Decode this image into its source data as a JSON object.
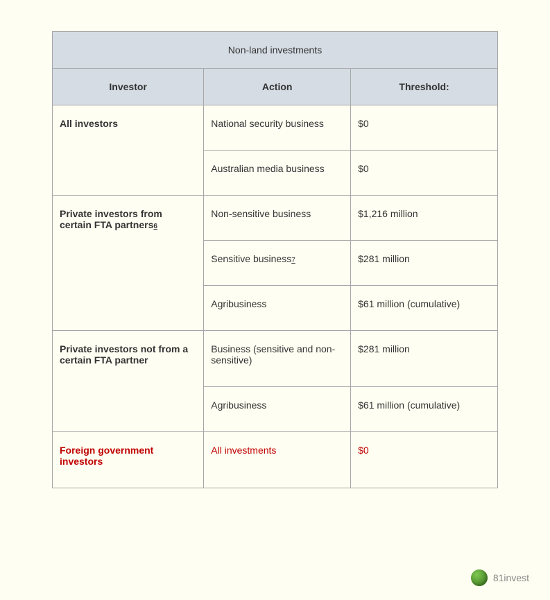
{
  "table": {
    "title": "Non-land investments",
    "columns": [
      "Investor",
      "Action",
      "Threshold:"
    ],
    "rows": [
      {
        "investor": "All investors",
        "investor_footnote": "",
        "actions": [
          {
            "action": "National security business",
            "action_footnote": "",
            "threshold": "$0"
          },
          {
            "action": "Australian media business",
            "action_footnote": "",
            "threshold": "$0"
          }
        ]
      },
      {
        "investor": "Private investors from certain FTA partners",
        "investor_footnote": "6",
        "actions": [
          {
            "action": "Non-sensitive business",
            "action_footnote": "",
            "threshold": "$1,216 million"
          },
          {
            "action": "Sensitive business",
            "action_footnote": "7",
            "threshold": "$281 million"
          },
          {
            "action": "Agribusiness",
            "action_footnote": "",
            "threshold": "$61 million (cumulative)"
          }
        ]
      },
      {
        "investor": "Private investors not from a certain FTA partner",
        "investor_footnote": "",
        "actions": [
          {
            "action": "Business (sensitive and non-sensitive)",
            "action_footnote": "",
            "threshold": "$281 million"
          },
          {
            "action": "Agribusiness",
            "action_footnote": "",
            "threshold": "$61 million (cumulative)"
          }
        ]
      },
      {
        "investor": "Foreign government investors",
        "investor_footnote": "",
        "highlight": true,
        "actions": [
          {
            "action": "All investments",
            "action_footnote": "",
            "threshold": "$0"
          }
        ]
      }
    ]
  },
  "watermark": {
    "text": "81invest"
  },
  "styling": {
    "background_color": "#fffef2",
    "header_bg": "#d5dce4",
    "border_color": "#a6a6a6",
    "text_color": "#333333",
    "highlight_color": "#c00000",
    "font_family": "Verdana",
    "font_size_body": 14,
    "font_size_footnote": 10
  }
}
